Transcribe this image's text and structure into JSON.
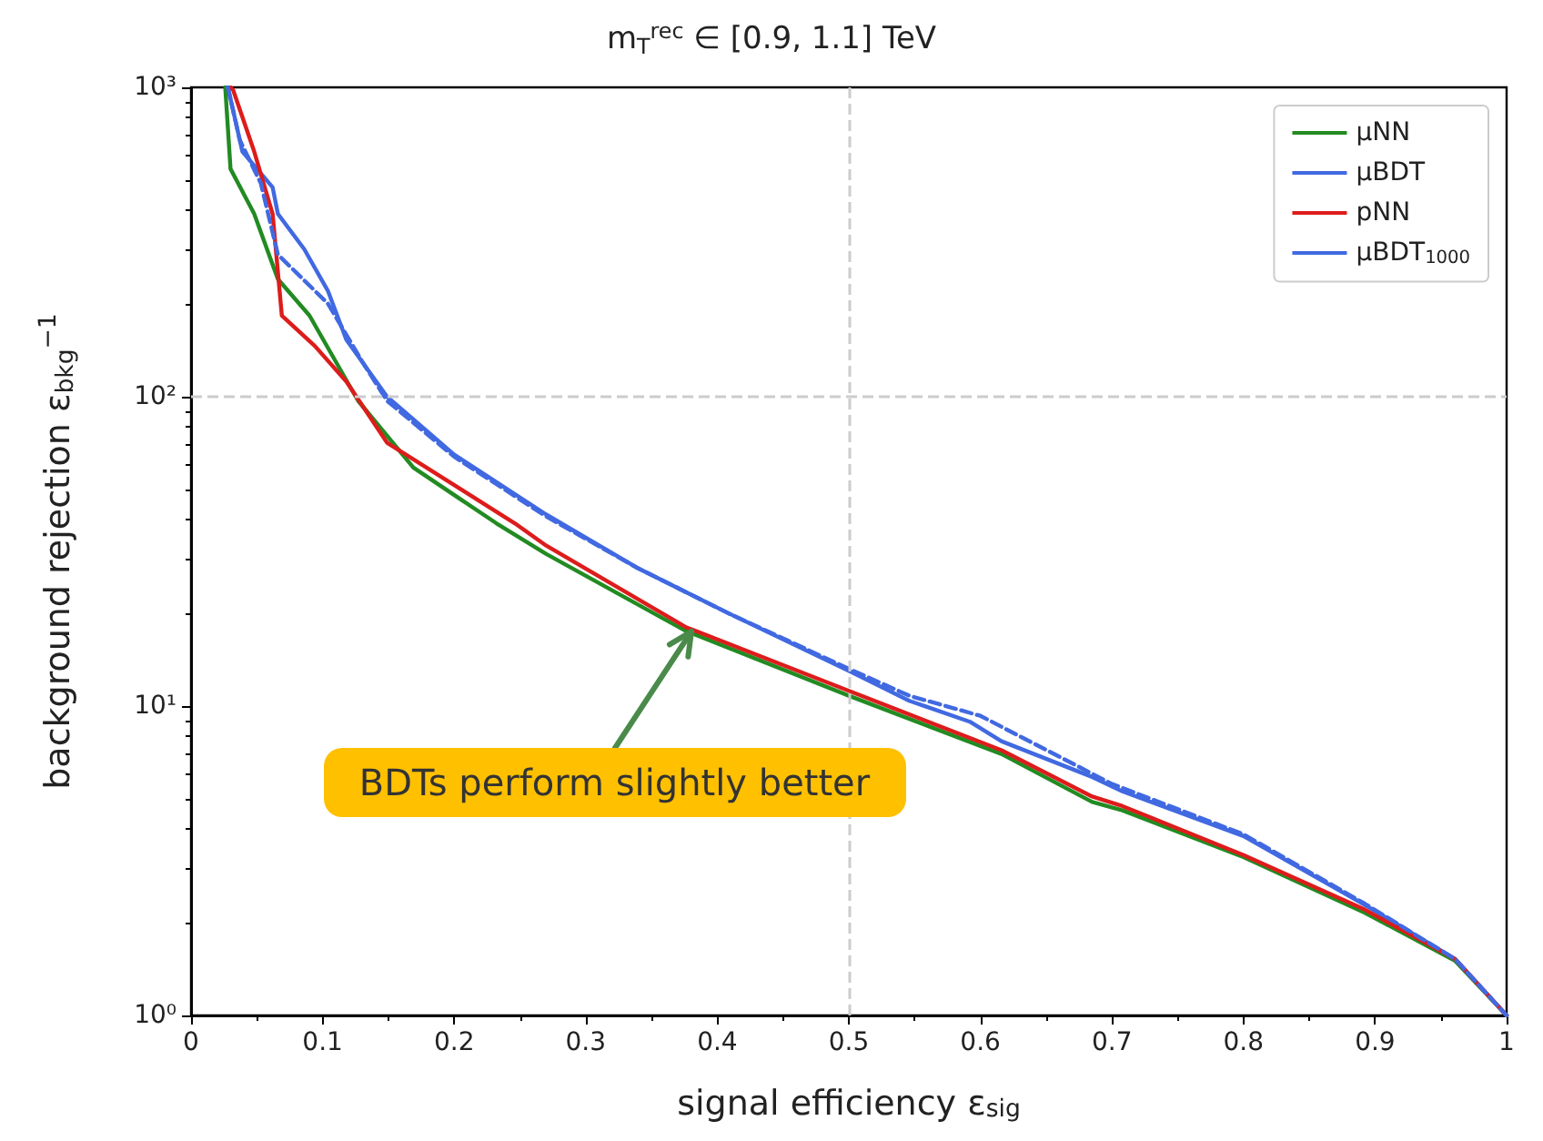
{
  "chart_data": {
    "type": "line",
    "title": "m$_{T}$$^{rec}$ ∈ [0.9, 1.1] TeV",
    "xlabel": "signal efficiency ε$_{sig}$",
    "ylabel": "background rejection ε$_{bkg}$$^{−1}$",
    "log": "y",
    "xlim": [
      0,
      1
    ],
    "ylim": [
      1,
      1000
    ],
    "xticks": [
      0,
      0.1,
      0.2,
      0.3,
      0.4,
      0.5,
      0.6,
      0.7,
      0.8,
      0.9,
      1.0
    ],
    "yticks": [
      {
        "value": 1,
        "label": "10⁰"
      },
      {
        "value": 10,
        "label": "10¹"
      },
      {
        "value": 100,
        "label": "10²"
      },
      {
        "value": 1000,
        "label": "10³"
      }
    ],
    "grid": false,
    "legend": "top right",
    "marker": "none",
    "line_style": "solid",
    "series": [
      {
        "name": "μNN",
        "color": "#228b22",
        "x": [
          0.026,
          0.03,
          0.048,
          0.066,
          0.09,
          0.127,
          0.169,
          0.232,
          0.27,
          0.376,
          0.5,
          0.616,
          0.685,
          0.708,
          0.8,
          0.892,
          0.961,
          1.0
        ],
        "values": [
          1000,
          545,
          390,
          240,
          183,
          97,
          59,
          39,
          31,
          17.5,
          10.8,
          7.0,
          4.9,
          4.6,
          3.25,
          2.15,
          1.5,
          1.0
        ]
      },
      {
        "name": "μBDT",
        "color": "#4169e1",
        "x": [
          0.028,
          0.039,
          0.062,
          0.066,
          0.086,
          0.104,
          0.118,
          0.149,
          0.2,
          0.27,
          0.339,
          0.408,
          0.5,
          0.546,
          0.592,
          0.616,
          0.685,
          0.708,
          0.8,
          0.892,
          0.961,
          1.0
        ],
        "values": [
          1000,
          620,
          475,
          390,
          300,
          220,
          153,
          100,
          65,
          41.6,
          28,
          20,
          13,
          10.4,
          8.9,
          7.7,
          5.9,
          5.3,
          3.8,
          2.28,
          1.52,
          1.0
        ]
      },
      {
        "name": "pNN",
        "color": "#dd1c1c",
        "x": [
          0.03,
          0.032,
          0.048,
          0.062,
          0.069,
          0.094,
          0.118,
          0.149,
          0.246,
          0.27,
          0.376,
          0.5,
          0.616,
          0.685,
          0.708,
          0.8,
          0.892,
          0.961,
          1.0
        ],
        "values": [
          1000,
          980,
          620,
          390,
          183,
          146,
          112,
          71,
          39,
          33,
          18,
          11.2,
          7.2,
          5.1,
          4.75,
          3.3,
          2.2,
          1.52,
          1.0
        ]
      },
      {
        "name": "μBDT$_{1000}$",
        "color": "#4169e1",
        "line_style": "dashed",
        "x": [
          0.028,
          0.037,
          0.053,
          0.066,
          0.104,
          0.131,
          0.149,
          0.2,
          0.27,
          0.339,
          0.408,
          0.5,
          0.546,
          0.6,
          0.7,
          0.8,
          0.892,
          0.961,
          1.0
        ],
        "values": [
          1000,
          676,
          490,
          288,
          200,
          128,
          97,
          64,
          41,
          28,
          20,
          13.2,
          10.8,
          9.3,
          5.6,
          3.85,
          2.3,
          1.52,
          1.0
        ]
      }
    ],
    "ref_lines": [
      {
        "axis": "x",
        "value": 0.5,
        "color": "#cccccc",
        "line_style": "dashed"
      },
      {
        "axis": "y",
        "value": 100,
        "color": "#cccccc",
        "line_style": "dashed"
      }
    ],
    "annotations": [
      {
        "text": "BDTs perform slightly better",
        "x": 0.38,
        "y": 18
      }
    ]
  }
}
